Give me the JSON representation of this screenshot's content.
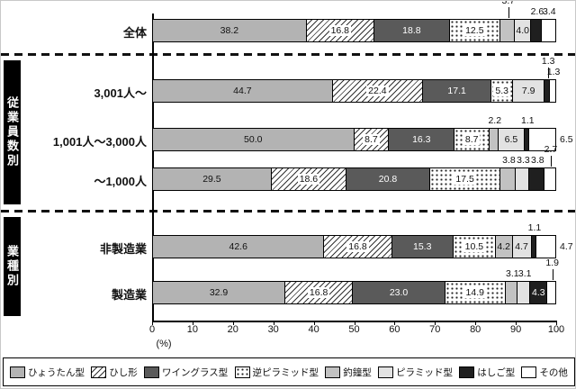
{
  "chart_data": {
    "type": "bar",
    "stacked": true,
    "orientation": "horizontal",
    "unit_label": "(%)",
    "x_axis": {
      "min": 0,
      "max": 100,
      "ticks": [
        0,
        10,
        20,
        30,
        40,
        50,
        60,
        70,
        80,
        90,
        100
      ]
    },
    "series": [
      "ひょうたん型",
      "ひし形",
      "ワイングラス型",
      "逆ピラミッド型",
      "釣鐘型",
      "ピラミッド型",
      "はしご型",
      "その他"
    ],
    "patterns": [
      "solid",
      "diagonal-hatch",
      "solid",
      "dots",
      "solid",
      "solid",
      "solid",
      "solid-white"
    ],
    "colors": [
      "#b3b3b3",
      "#ffffff",
      "#5a5a5a",
      "#ffffff",
      "#c2c2c2",
      "#e2e2e2",
      "#1f1f1f",
      "#ffffff"
    ],
    "legend_position": "bottom",
    "groups": [
      {
        "label": "",
        "rows": [
          {
            "label": "全体",
            "values": [
              38.2,
              16.8,
              18.8,
              12.5,
              3.7,
              4.0,
              2.6,
              3.4
            ],
            "label_pos": [
              "in",
              "in",
              "in",
              "in",
              "up2",
              "in",
              "up1",
              "up1"
            ]
          }
        ]
      },
      {
        "label": "従業員数別",
        "rows": [
          {
            "label": "3,001人～",
            "values": [
              44.7,
              22.4,
              17.1,
              5.3,
              0.0,
              7.9,
              1.3,
              1.3
            ],
            "label_pos": [
              "in",
              "in",
              "in",
              "in",
              "none",
              "in",
              "up2",
              "up1"
            ]
          },
          {
            "label": "1,001人～3,000人",
            "values": [
              50.0,
              8.7,
              16.3,
              8.7,
              2.2,
              6.5,
              1.1,
              6.5
            ],
            "label_pos": [
              "in",
              "in",
              "in",
              "in",
              "up1",
              "in",
              "up1",
              "right"
            ]
          },
          {
            "label": "～1,000人",
            "values": [
              29.5,
              18.6,
              20.8,
              17.5,
              3.8,
              3.3,
              3.8,
              2.7
            ],
            "label_pos": [
              "in",
              "in",
              "in",
              "in",
              "up1",
              "up1",
              "up1",
              "up2"
            ]
          }
        ]
      },
      {
        "label": "業種別",
        "rows": [
          {
            "label": "非製造業",
            "values": [
              42.6,
              16.8,
              15.3,
              10.5,
              4.2,
              4.7,
              1.1,
              4.7
            ],
            "label_pos": [
              "in",
              "in",
              "in",
              "in",
              "in",
              "in",
              "up1",
              "right"
            ]
          },
          {
            "label": "製造業",
            "values": [
              32.9,
              16.8,
              23.0,
              14.9,
              3.1,
              3.1,
              4.3,
              1.9
            ],
            "label_pos": [
              "in",
              "in",
              "in",
              "in",
              "up1",
              "up1",
              "in",
              "up2"
            ]
          }
        ]
      }
    ]
  }
}
